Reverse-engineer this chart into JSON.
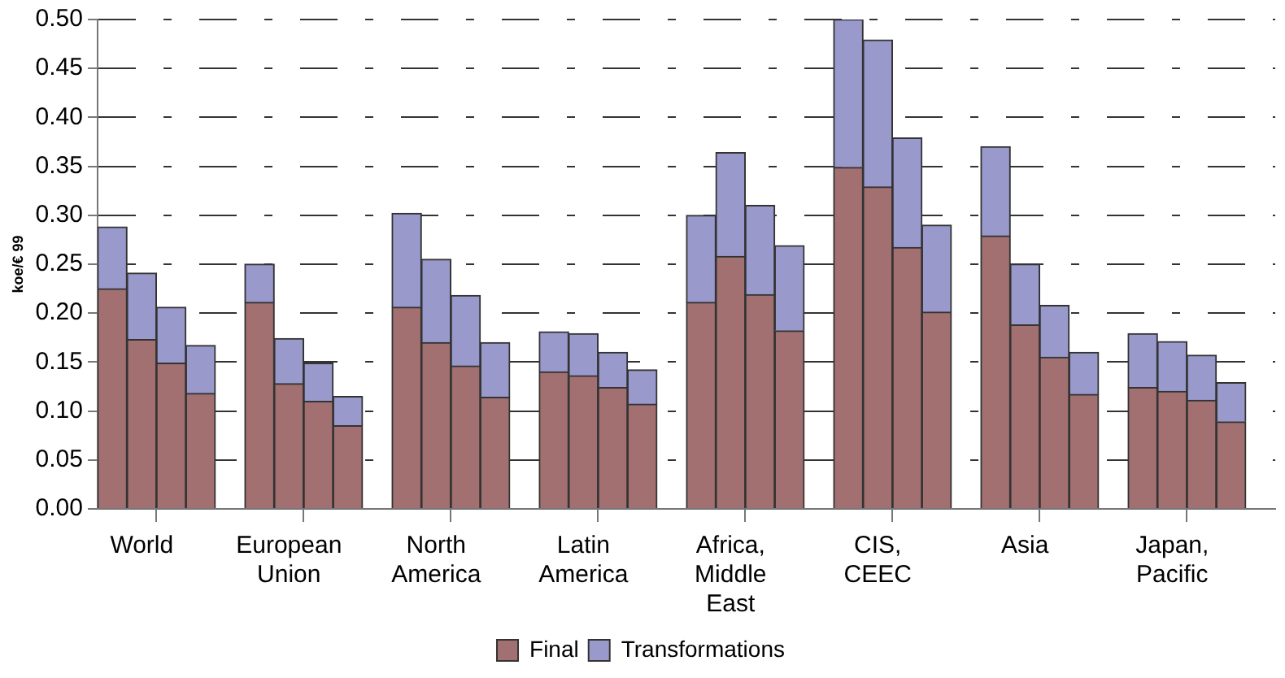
{
  "chart_data": {
    "type": "bar",
    "stacked": true,
    "ylabel": "koe/€ 99",
    "categories": [
      null,
      "World",
      null,
      null,
      null,
      null,
      "European Union",
      null,
      null,
      null,
      null,
      "North America",
      null,
      null,
      null,
      null,
      "Latin America",
      null,
      null,
      null,
      null,
      "Africa, Middle East",
      null,
      null,
      null,
      null,
      "CIS, CEEC",
      null,
      null,
      null,
      null,
      "Asia",
      null,
      null,
      null,
      null,
      "Japan, Pacific",
      null,
      null,
      null
    ],
    "series": [
      {
        "name": "Final",
        "color": "#a27070",
        "values": [
          0.225,
          0.173,
          0.149,
          0.118,
          null,
          0.211,
          0.128,
          0.11,
          0.085,
          null,
          0.206,
          0.17,
          0.146,
          0.114,
          null,
          0.14,
          0.136,
          0.124,
          0.107,
          null,
          0.211,
          0.258,
          0.219,
          0.182,
          null,
          0.349,
          0.329,
          0.267,
          0.201,
          null,
          0.279,
          0.188,
          0.155,
          0.117,
          null,
          0.124,
          0.12,
          0.111,
          0.089,
          null
        ]
      },
      {
        "name": "Transformations",
        "color": "#9999cc",
        "values": [
          0.063,
          0.068,
          0.057,
          0.049,
          null,
          0.039,
          0.046,
          0.039,
          0.03,
          null,
          0.096,
          0.085,
          0.072,
          0.056,
          null,
          0.041,
          0.043,
          0.036,
          0.035,
          null,
          0.089,
          0.106,
          0.091,
          0.087,
          null,
          0.151,
          0.15,
          0.112,
          0.089,
          null,
          0.091,
          0.062,
          0.053,
          0.043,
          null,
          0.055,
          0.051,
          0.046,
          0.04,
          null
        ]
      }
    ],
    "ylim": [
      0,
      0.5
    ],
    "yticks": [
      {
        "value": 0,
        "label": "0.00"
      },
      {
        "value": 0.05,
        "label": "0.05"
      },
      {
        "value": 0.1,
        "label": "0.10"
      },
      {
        "value": 0.15,
        "label": "0.15"
      },
      {
        "value": 0.2,
        "label": "0.20"
      },
      {
        "value": 0.25,
        "label": "0.25"
      },
      {
        "value": 0.3,
        "label": "0.30"
      },
      {
        "value": 0.35,
        "label": "0.35"
      },
      {
        "value": 0.4,
        "label": "0.40"
      },
      {
        "value": 0.45,
        "label": "0.45"
      },
      {
        "value": 0.5,
        "label": "0.50"
      }
    ],
    "grid": "y",
    "legend": "bottom"
  }
}
